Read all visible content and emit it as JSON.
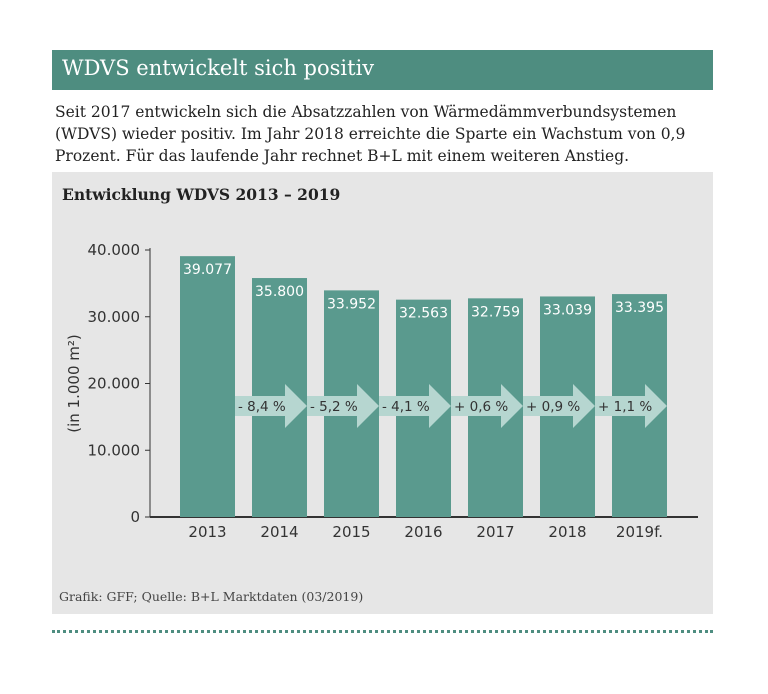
{
  "header": {
    "title": "WDVS entwickelt sich positiv"
  },
  "intro": {
    "text": "Seit 2017 entwickeln sich die Absatzzahlen von Wärmedämmverbundsystemen (WDVS) wieder positiv. Im Jahr 2018 erreichte die Sparte ein Wachstum von 0,9 Prozent. Für das laufende Jahr rechnet B+L mit einem weiteren Anstieg."
  },
  "source": "Grafik: GFF; Quelle: B+L Marktdaten (03/2019)",
  "colors": {
    "accent": "#4e8d80",
    "bar": "#5a9a8e",
    "arrow": "#b6d6d0",
    "panel": "#e6e6e6"
  },
  "chart_data": {
    "type": "bar",
    "title": "Entwicklung WDVS 2013 – 2019",
    "ylabel": "(in 1.000 m²)",
    "xlabel": "",
    "ylim": [
      0,
      40000
    ],
    "yticks": [
      0,
      10000,
      20000,
      30000,
      40000
    ],
    "ytick_labels": [
      "0",
      "10.000",
      "20.000",
      "30.000",
      "40.000"
    ],
    "categories": [
      "2013",
      "2014",
      "2015",
      "2016",
      "2017",
      "2018",
      "2019f."
    ],
    "values": [
      39077,
      35800,
      33952,
      32563,
      32759,
      33039,
      33395
    ],
    "value_labels": [
      "39.077",
      "35.800",
      "33.952",
      "32.563",
      "32.759",
      "33.039",
      "33.395"
    ],
    "changes": [
      "- 8,4 %",
      "- 5,2 %",
      "- 4,1 %",
      "+ 0,6 %",
      "+ 0,9 %",
      "+ 1,1 %"
    ]
  }
}
